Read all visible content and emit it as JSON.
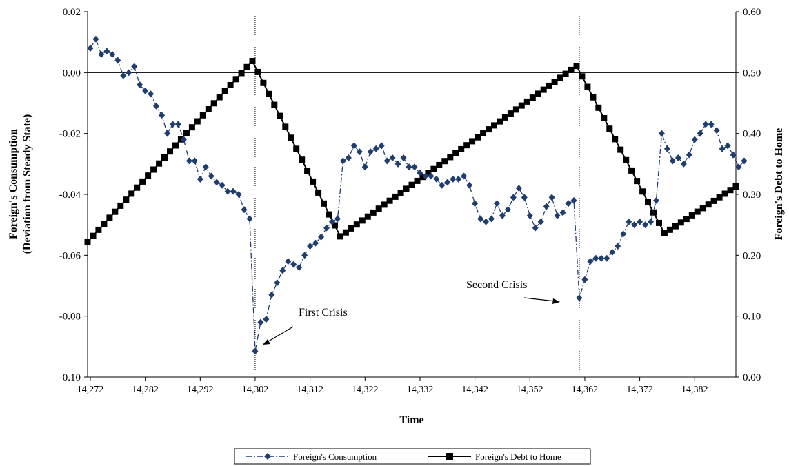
{
  "chart_data": {
    "type": "line",
    "title": "",
    "xlabel": "Time",
    "ylabel_left_line1": "Foreign's Consumption",
    "ylabel_left_line2": "(Deviation from Steady State)",
    "ylabel_right": "Foreign's Debt to Home",
    "xlim": [
      14271.5,
      14389.5
    ],
    "x_ticks": [
      14272,
      14282,
      14292,
      14302,
      14312,
      14322,
      14332,
      14342,
      14352,
      14362,
      14372,
      14382
    ],
    "x_tick_labels": [
      "14,272",
      "14,282",
      "14,292",
      "14,302",
      "14,312",
      "14,322",
      "14,332",
      "14,342",
      "14,352",
      "14,362",
      "14,372",
      "14,382"
    ],
    "y_left": {
      "lim": [
        -0.1,
        0.02
      ],
      "ticks": [
        0.02,
        0.0,
        -0.02,
        -0.04,
        -0.06,
        -0.08,
        -0.1
      ],
      "tick_labels": [
        "0.02",
        "0.00",
        "-0.02",
        "-0.04",
        "-0.06",
        "-0.08",
        "-0.10"
      ]
    },
    "y_right": {
      "lim": [
        0.0,
        0.6
      ],
      "ticks": [
        0.6,
        0.5,
        0.4,
        0.3,
        0.2,
        0.1,
        0.0
      ],
      "tick_labels": [
        "0.60",
        "0.50",
        "0.40",
        "0.30",
        "0.20",
        "0.10",
        "0.00"
      ]
    },
    "reference_lines": {
      "horizontal_left_y": 0.0,
      "vertical_x": [
        14302,
        14361
      ]
    },
    "legend_position": "bottom-center",
    "annotations": [
      {
        "text": "First Crisis",
        "x": 14302,
        "y_left": -0.0915
      },
      {
        "text": "Second Crisis",
        "x": 14361,
        "y_left": -0.074
      }
    ],
    "series": [
      {
        "name": "Foreign's Consumption",
        "axis": "left",
        "color": "#1f3d6e",
        "style": "dash-dot",
        "marker": "diamond",
        "start": 14272,
        "values": [
          0.008,
          0.011,
          0.006,
          0.007,
          0.006,
          0.004,
          -0.001,
          0.0,
          0.002,
          -0.004,
          -0.006,
          -0.007,
          -0.011,
          -0.014,
          -0.02,
          -0.017,
          -0.017,
          -0.022,
          -0.029,
          -0.029,
          -0.035,
          -0.031,
          -0.034,
          -0.036,
          -0.037,
          -0.039,
          -0.039,
          -0.04,
          -0.045,
          -0.048,
          -0.0915,
          -0.082,
          -0.081,
          -0.073,
          -0.069,
          -0.065,
          -0.062,
          -0.063,
          -0.064,
          -0.06,
          -0.057,
          -0.056,
          -0.054,
          -0.051,
          -0.049,
          -0.048,
          -0.029,
          -0.028,
          -0.024,
          -0.026,
          -0.031,
          -0.026,
          -0.025,
          -0.024,
          -0.029,
          -0.028,
          -0.03,
          -0.028,
          -0.031,
          -0.031,
          -0.033,
          -0.034,
          -0.034,
          -0.035,
          -0.037,
          -0.036,
          -0.035,
          -0.035,
          -0.034,
          -0.037,
          -0.043,
          -0.048,
          -0.049,
          -0.048,
          -0.043,
          -0.047,
          -0.045,
          -0.041,
          -0.038,
          -0.041,
          -0.047,
          -0.051,
          -0.049,
          -0.044,
          -0.041,
          -0.047,
          -0.046,
          -0.043,
          -0.042,
          -0.074,
          -0.068,
          -0.062,
          -0.061,
          -0.061,
          -0.061,
          -0.059,
          -0.057,
          -0.053,
          -0.049,
          -0.05,
          -0.049,
          -0.05,
          -0.049,
          -0.042,
          -0.02,
          -0.025,
          -0.029,
          -0.028,
          -0.03,
          -0.027,
          -0.022,
          -0.02,
          -0.017,
          -0.017,
          -0.019,
          -0.025,
          -0.024,
          -0.027,
          -0.031,
          -0.029
        ]
      },
      {
        "name": "Foreign's Debt to Home",
        "axis": "right",
        "color": "#000000",
        "style": "solid",
        "marker": "square",
        "segments": [
          {
            "x_start": 14271.5,
            "x_end": 14301.5,
            "y_start": 0.222,
            "y_end": 0.519
          },
          {
            "x_start": 14301.5,
            "x_end": 14317.5,
            "y_start": 0.519,
            "y_end": 0.231
          },
          {
            "x_start": 14317.5,
            "x_end": 14360.5,
            "y_start": 0.231,
            "y_end": 0.511
          },
          {
            "x_start": 14360.5,
            "x_end": 14376.5,
            "y_start": 0.511,
            "y_end": 0.236
          },
          {
            "x_start": 14376.5,
            "x_end": 14389.5,
            "y_start": 0.236,
            "y_end": 0.313
          }
        ]
      }
    ]
  }
}
